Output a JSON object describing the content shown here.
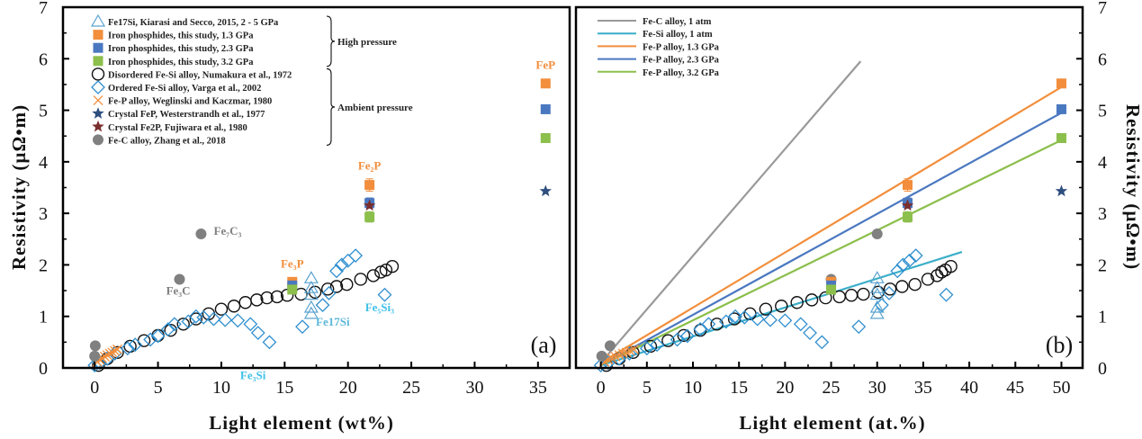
{
  "chart_data": [
    {
      "type": "scatter",
      "panel_label": "(a)",
      "xlabel": "Light element  (wt%)",
      "ylabel": "Resistivity (µΩ•m)",
      "xlim": [
        -2.5,
        37.5
      ],
      "ylim": [
        0,
        7
      ],
      "xticks": [
        "0",
        "5",
        "10",
        "15",
        "20",
        "25",
        "30",
        "35"
      ],
      "xtick_values": [
        0,
        5,
        10,
        15,
        20,
        25,
        30,
        35
      ],
      "yticks": [
        "0",
        "1",
        "2",
        "3",
        "4",
        "5",
        "6",
        "7"
      ],
      "ytick_values": [
        0,
        1,
        2,
        3,
        4,
        5,
        6,
        7
      ],
      "grid": false,
      "legend_position": "top-left",
      "legend": [
        {
          "label": "Fe17Si, Kiarasi and Secco, 2015, 2 - 5 GPa",
          "marker": "triangle-open",
          "color": "#5ba3d0"
        },
        {
          "label": "Iron phosphides, this study, 1.3 GPa",
          "marker": "square",
          "color": "#f28e3c"
        },
        {
          "label": "Iron phosphides, this study, 2.3 GPa",
          "marker": "square",
          "color": "#4a78c0"
        },
        {
          "label": "Iron phosphides, this study, 3.2 GPa",
          "marker": "square",
          "color": "#8cbf4c"
        },
        {
          "label": "Disordered Fe-Si alloy, Numakura et al., 1972",
          "marker": "circle-open",
          "color": "#111111"
        },
        {
          "label": "Ordered Fe-Si alloy, Varga et al., 2002",
          "marker": "diamond-open",
          "color": "#2f8fcf"
        },
        {
          "label": "Fe-P alloy, Weglinski and Kaczmar, 1980",
          "marker": "cross",
          "color": "#f28e3c"
        },
        {
          "label": "Crystal FeP, Westerstrandh et al., 1977",
          "marker": "star",
          "color": "#2e4e7e"
        },
        {
          "label": "Crystal Fe2P, Fujiwara et al., 1980",
          "marker": "star",
          "color": "#7a2e2e"
        },
        {
          "label": "Fe-C alloy, Zhang et al., 2018",
          "marker": "circle",
          "color": "#808080"
        }
      ],
      "legend_groups": [
        {
          "label": "High pressure",
          "from": 0,
          "to": 3
        },
        {
          "label": "Ambient pressure",
          "from": 4,
          "to": 9
        }
      ],
      "series": [
        {
          "name": "Fe17Si, Kiarasi and Secco, 2015, 2 - 5 GPa",
          "marker": "triangle-open",
          "color": "#5ba3d0",
          "x": [
            17.1,
            17.1,
            17.1,
            17.1,
            17.1
          ],
          "y": [
            1.05,
            1.17,
            1.42,
            1.55,
            1.74
          ]
        },
        {
          "name": "Iron phosphides, this study, 1.3 GPa",
          "marker": "square",
          "color": "#f28e3c",
          "x": [
            15.6,
            21.7,
            35.6
          ],
          "y": [
            1.67,
            3.55,
            5.52
          ],
          "yerr": [
            0.05,
            0.12,
            0.05
          ]
        },
        {
          "name": "Iron phosphides, this study, 2.3 GPa",
          "marker": "square",
          "color": "#4a78c0",
          "x": [
            15.6,
            21.7,
            35.6
          ],
          "y": [
            1.6,
            3.2,
            5.02
          ],
          "yerr": [
            0.05,
            0.1,
            0.05
          ]
        },
        {
          "name": "Iron phosphides, this study, 3.2 GPa",
          "marker": "square",
          "color": "#8cbf4c",
          "x": [
            15.6,
            21.7,
            35.6
          ],
          "y": [
            1.52,
            2.93,
            4.46
          ],
          "yerr": [
            0.05,
            0.1,
            0.05
          ]
        },
        {
          "name": "Disordered Fe-Si alloy, Numakura et al., 1972",
          "marker": "circle-open",
          "color": "#111111",
          "x": [
            0.3,
            1.0,
            1.8,
            2.8,
            3.9,
            5.0,
            6.0,
            7.0,
            8.0,
            9.0,
            10.0,
            11.0,
            11.9,
            12.8,
            13.6,
            14.4,
            15.2,
            16.3,
            17.4,
            18.4,
            19.1,
            19.9,
            21.0,
            22.0,
            22.6,
            23.0,
            23.5
          ],
          "y": [
            0.05,
            0.18,
            0.3,
            0.42,
            0.53,
            0.63,
            0.73,
            0.85,
            0.95,
            1.05,
            1.14,
            1.2,
            1.27,
            1.32,
            1.36,
            1.38,
            1.41,
            1.43,
            1.47,
            1.53,
            1.58,
            1.62,
            1.72,
            1.79,
            1.86,
            1.9,
            1.97
          ]
        },
        {
          "name": "Ordered Fe-Si alloy, Varga et al., 2002",
          "marker": "diamond-open",
          "color": "#2f8fcf",
          "x": [
            0.0,
            0.4,
            1.0,
            1.6,
            2.6,
            3.2,
            4.4,
            5.0,
            5.8,
            6.3,
            7.4,
            8.0,
            8.6,
            9.4,
            10.3,
            11.3,
            12.3,
            12.9,
            13.8,
            16.4,
            18.0,
            18.5,
            19.1,
            19.5,
            20.0,
            20.6,
            22.9
          ],
          "y": [
            0.05,
            0.1,
            0.18,
            0.28,
            0.38,
            0.45,
            0.55,
            0.62,
            0.75,
            0.85,
            0.9,
            1.0,
            0.98,
            0.95,
            0.93,
            0.92,
            0.85,
            0.68,
            0.5,
            0.8,
            1.22,
            1.45,
            1.88,
            2.0,
            2.08,
            2.18,
            1.42
          ]
        },
        {
          "name": "Fe-P alloy, Weglinski and Kaczmar, 1980",
          "marker": "cross",
          "color": "#f28e3c",
          "x": [
            0.2,
            0.4,
            0.6,
            0.8,
            1.0,
            1.2,
            1.4,
            1.6,
            1.8
          ],
          "y": [
            0.12,
            0.16,
            0.19,
            0.22,
            0.25,
            0.28,
            0.3,
            0.33,
            0.36
          ]
        },
        {
          "name": "Crystal FeP, Westerstrandh et al., 1977",
          "marker": "star",
          "color": "#2e4e7e",
          "x": [
            35.6
          ],
          "y": [
            3.43
          ]
        },
        {
          "name": "Crystal Fe2P, Fujiwara et al., 1980",
          "marker": "star",
          "color": "#7a2e2e",
          "x": [
            21.7
          ],
          "y": [
            3.15
          ]
        },
        {
          "name": "Fe-C alloy, Zhang et al., 2018",
          "marker": "circle",
          "color": "#808080",
          "x": [
            0.0,
            0.05,
            6.7,
            8.4
          ],
          "y": [
            0.23,
            0.43,
            1.72,
            2.6
          ]
        }
      ],
      "annotations": [
        {
          "text": "FeP",
          "x": 35.6,
          "y": 5.8,
          "color": "#f28e3c"
        },
        {
          "text": "Fe₂P",
          "x": 21.7,
          "y": 3.85,
          "color": "#f28e3c"
        },
        {
          "text": "Fe₃P",
          "x": 15.6,
          "y": 1.95,
          "color": "#f28e3c"
        },
        {
          "text": "Fe₇C₃",
          "x": 10.5,
          "y": 2.58,
          "color": "#808080"
        },
        {
          "text": "Fe₃C",
          "x": 6.6,
          "y": 1.42,
          "color": "#808080"
        },
        {
          "text": "Fe17Si",
          "x": 18.8,
          "y": 0.82,
          "color": "#5bb8d8"
        },
        {
          "text": "Fe₅Si₃",
          "x": 22.5,
          "y": 1.1,
          "color": "#3fc0e8"
        },
        {
          "text": "Fe₃Si",
          "x": 12.5,
          "y": -0.22,
          "color": "#3fc0e8"
        }
      ]
    },
    {
      "type": "scatter",
      "panel_label": "(b)",
      "xlabel": "Light element  (at.%)",
      "ylabel": "Resistivity (µΩ•m)",
      "xlim": [
        -2.7,
        52.3
      ],
      "ylim": [
        0,
        7
      ],
      "xticks": [
        "0",
        "5",
        "10",
        "15",
        "20",
        "25",
        "30",
        "35",
        "40",
        "45",
        "50"
      ],
      "xtick_values": [
        0,
        5,
        10,
        15,
        20,
        25,
        30,
        35,
        40,
        45,
        50
      ],
      "yticks": [
        "0",
        "1",
        "2",
        "3",
        "4",
        "5",
        "6",
        "7"
      ],
      "ytick_values": [
        0,
        1,
        2,
        3,
        4,
        5,
        6,
        7
      ],
      "grid": false,
      "legend_position": "top-left",
      "legend": [
        {
          "label": "Fe-C alloy,  1 atm",
          "color": "#999999"
        },
        {
          "label": "Fe-Si alloy,  1 atm",
          "color": "#3aaec8"
        },
        {
          "label": "Fe-P alloy,  1.3 GPa",
          "color": "#f28e3c"
        },
        {
          "label": "Fe-P alloy,  2.3 GPa",
          "color": "#4a78c0"
        },
        {
          "label": "Fe-P alloy,  3.2 GPa",
          "color": "#8cbf4c"
        }
      ],
      "lines": [
        {
          "name": "Fe-C alloy,  1 atm",
          "color": "#999999",
          "x": [
            0,
            28.2
          ],
          "y": [
            0.1,
            5.95
          ]
        },
        {
          "name": "Fe-Si alloy,  1 atm",
          "color": "#3aaec8",
          "x": [
            0,
            39.2
          ],
          "y": [
            0.05,
            2.25
          ]
        },
        {
          "name": "Fe-P alloy,  1.3 GPa",
          "color": "#f28e3c",
          "x": [
            0,
            50
          ],
          "y": [
            0.1,
            5.45
          ]
        },
        {
          "name": "Fe-P alloy,  2.3 GPa",
          "color": "#4a78c0",
          "x": [
            0,
            50
          ],
          "y": [
            0.05,
            4.95
          ]
        },
        {
          "name": "Fe-P alloy,  3.2 GPa",
          "color": "#8cbf4c",
          "x": [
            0,
            50
          ],
          "y": [
            0.05,
            4.42
          ]
        }
      ],
      "series": [
        {
          "name": "Fe17Si",
          "marker": "triangle-open",
          "color": "#5ba3d0",
          "x": [
            30,
            30,
            30,
            30,
            30
          ],
          "y": [
            1.05,
            1.17,
            1.42,
            1.55,
            1.74
          ]
        },
        {
          "name": "Iron phosphides 1.3 GPa",
          "marker": "square",
          "color": "#f28e3c",
          "x": [
            25,
            33.3,
            50
          ],
          "y": [
            1.67,
            3.55,
            5.52
          ],
          "yerr": [
            0.05,
            0.12,
            0.05
          ]
        },
        {
          "name": "Iron phosphides 2.3 GPa",
          "marker": "square",
          "color": "#4a78c0",
          "x": [
            25,
            33.3,
            50
          ],
          "y": [
            1.6,
            3.2,
            5.02
          ],
          "yerr": [
            0.05,
            0.1,
            0.05
          ]
        },
        {
          "name": "Iron phosphides 3.2 GPa",
          "marker": "square",
          "color": "#8cbf4c",
          "x": [
            25,
            33.3,
            50
          ],
          "y": [
            1.52,
            2.93,
            4.46
          ],
          "yerr": [
            0.05,
            0.1,
            0.05
          ]
        },
        {
          "name": "Disordered Fe-Si alloy",
          "marker": "circle-open",
          "color": "#111111",
          "x": [
            0.6,
            2.0,
            3.5,
            5.4,
            7.3,
            9.0,
            10.8,
            12.6,
            14.5,
            16.2,
            17.9,
            19.6,
            21.3,
            22.9,
            24.4,
            25.9,
            27.2,
            28.5,
            30.1,
            31.4,
            32.7,
            34.1,
            35.5,
            36.5,
            37.0,
            37.4,
            38.0
          ],
          "y": [
            0.05,
            0.18,
            0.3,
            0.42,
            0.53,
            0.63,
            0.73,
            0.85,
            0.95,
            1.05,
            1.14,
            1.2,
            1.27,
            1.32,
            1.36,
            1.38,
            1.41,
            1.43,
            1.47,
            1.53,
            1.58,
            1.62,
            1.72,
            1.79,
            1.86,
            1.9,
            1.97
          ]
        },
        {
          "name": "Ordered Fe-Si alloy",
          "marker": "diamond-open",
          "color": "#2f8fcf",
          "x": [
            0.0,
            0.8,
            2.0,
            3.1,
            5.0,
            6.1,
            8.3,
            9.4,
            10.8,
            11.7,
            13.6,
            14.6,
            15.6,
            17.0,
            18.4,
            20.0,
            21.7,
            22.7,
            24.0,
            28.0,
            30.5,
            31.3,
            32.2,
            32.8,
            33.5,
            34.2,
            37.5
          ],
          "y": [
            0.05,
            0.1,
            0.18,
            0.28,
            0.38,
            0.45,
            0.55,
            0.62,
            0.75,
            0.85,
            0.9,
            1.0,
            0.98,
            0.95,
            0.93,
            0.92,
            0.85,
            0.68,
            0.5,
            0.8,
            1.22,
            1.45,
            1.88,
            2.0,
            2.08,
            2.18,
            1.42
          ]
        },
        {
          "name": "Fe-P alloy",
          "marker": "cross",
          "color": "#f28e3c",
          "x": [
            0.4,
            0.8,
            1.2,
            1.6,
            2.0,
            2.4,
            2.8,
            3.2,
            3.6
          ],
          "y": [
            0.12,
            0.16,
            0.19,
            0.22,
            0.25,
            0.28,
            0.3,
            0.33,
            0.36
          ]
        },
        {
          "name": "Crystal FeP",
          "marker": "star",
          "color": "#2e4e7e",
          "x": [
            50
          ],
          "y": [
            3.43
          ]
        },
        {
          "name": "Crystal Fe2P",
          "marker": "star",
          "color": "#7a2e2e",
          "x": [
            33.3
          ],
          "y": [
            3.15
          ]
        },
        {
          "name": "Fe-C alloy",
          "marker": "circle",
          "color": "#808080",
          "x": [
            0.1,
            1.0,
            25,
            30
          ],
          "y": [
            0.23,
            0.43,
            1.72,
            2.6
          ]
        }
      ]
    }
  ]
}
